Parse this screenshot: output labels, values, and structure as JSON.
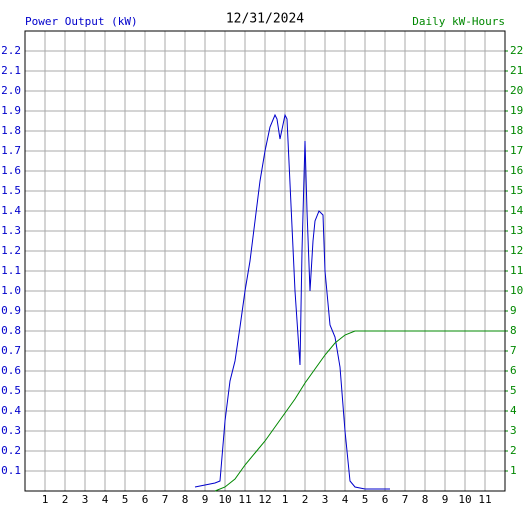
{
  "chart_data": {
    "type": "line",
    "title": "12/31/2024",
    "xlim": [
      0,
      24
    ],
    "xticks": [
      1,
      2,
      3,
      4,
      5,
      6,
      7,
      8,
      9,
      10,
      11,
      12,
      {
        "value": 13,
        "label": "1"
      },
      {
        "value": 14,
        "label": "2"
      },
      {
        "value": 15,
        "label": "3"
      },
      {
        "value": 16,
        "label": "4"
      },
      {
        "value": 17,
        "label": "5"
      },
      {
        "value": 18,
        "label": "6"
      },
      {
        "value": 19,
        "label": "7"
      },
      {
        "value": 20,
        "label": "8"
      },
      {
        "value": 21,
        "label": "9"
      },
      {
        "value": 22,
        "label": "10"
      },
      {
        "value": 23,
        "label": "11"
      }
    ],
    "ylim": [
      0,
      2.3
    ],
    "yticks": [
      0.1,
      0.2,
      0.3,
      0.4,
      0.5,
      0.6,
      0.7,
      0.8,
      0.9,
      {
        "value": 1,
        "label": "1.0"
      },
      1.1,
      1.2,
      1.3,
      1.4,
      1.5,
      1.6,
      1.7,
      1.8,
      1.9,
      {
        "value": 2,
        "label": "2.0"
      },
      2.1,
      2.2
    ],
    "y2lim": [
      0,
      23
    ],
    "y2ticks": [
      1,
      2,
      3,
      4,
      5,
      6,
      7,
      8,
      9,
      10,
      11,
      12,
      13,
      14,
      15,
      16,
      17,
      18,
      19,
      20,
      21,
      22
    ],
    "grid": true,
    "series": [
      {
        "name": "Power Output (kW)",
        "color": "#0000cc",
        "x": [
          8.5,
          9,
          9.5,
          9.75,
          10,
          10.25,
          10.5,
          10.75,
          11,
          11.25,
          11.5,
          11.75,
          12,
          12.25,
          12.5,
          12.6,
          12.75,
          13,
          13.1,
          13.5,
          13.75,
          13.85,
          14.0,
          14.1,
          14.25,
          14.4,
          14.5,
          14.7,
          14.9,
          15.0,
          15.25,
          15.5,
          15.75,
          16,
          16.25,
          16.5,
          17,
          17.5,
          18.25
        ],
        "values": [
          0.02,
          0.03,
          0.04,
          0.05,
          0.35,
          0.55,
          0.65,
          0.82,
          1.0,
          1.15,
          1.35,
          1.55,
          1.7,
          1.82,
          1.88,
          1.86,
          1.76,
          1.88,
          1.86,
          1.0,
          0.63,
          1.2,
          1.75,
          1.4,
          1.0,
          1.25,
          1.35,
          1.4,
          1.38,
          1.1,
          0.83,
          0.77,
          0.62,
          0.3,
          0.05,
          0.02,
          0.01,
          0.01,
          0.01
        ]
      },
      {
        "name": "Daily kW-Hours",
        "color": "#008800",
        "axis": "y2",
        "x": [
          9.5,
          10,
          10.5,
          11,
          11.5,
          12,
          12.5,
          13,
          13.5,
          14,
          14.5,
          15,
          15.5,
          16,
          16.5,
          24
        ],
        "values": [
          0,
          0.2,
          0.6,
          1.3,
          1.9,
          2.5,
          3.2,
          3.9,
          4.6,
          5.4,
          6.1,
          6.8,
          7.4,
          7.8,
          8.0,
          8.0
        ]
      }
    ]
  }
}
